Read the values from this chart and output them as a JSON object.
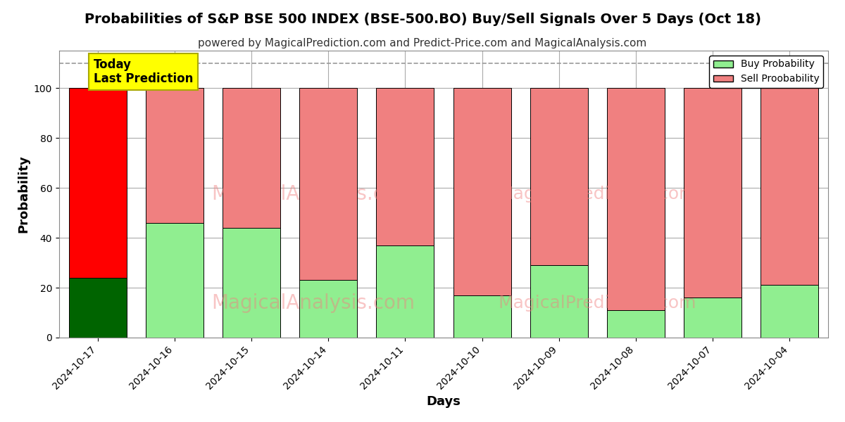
{
  "title": "Probabilities of S&P BSE 500 INDEX (BSE-500.BO) Buy/Sell Signals Over 5 Days (Oct 18)",
  "subtitle": "powered by MagicalPrediction.com and Predict-Price.com and MagicalAnalysis.com",
  "xlabel": "Days",
  "ylabel": "Probability",
  "watermark1": "MagicalAnalysis.com",
  "watermark2": "MagicalPrediction.com",
  "categories": [
    "2024-10-17",
    "2024-10-16",
    "2024-10-15",
    "2024-10-14",
    "2024-10-11",
    "2024-10-10",
    "2024-10-09",
    "2024-10-08",
    "2024-10-07",
    "2024-10-04"
  ],
  "buy_values": [
    24,
    46,
    44,
    23,
    37,
    17,
    29,
    11,
    16,
    21
  ],
  "sell_values": [
    76,
    54,
    56,
    77,
    63,
    83,
    71,
    89,
    84,
    79
  ],
  "today_bar_index": 0,
  "today_buy_color": "#006400",
  "today_sell_color": "#FF0000",
  "other_buy_color": "#90EE90",
  "other_sell_color": "#F08080",
  "bar_edge_color": "#000000",
  "ylim": [
    0,
    115
  ],
  "yticks": [
    0,
    20,
    40,
    60,
    80,
    100
  ],
  "dashed_line_y": 110,
  "legend_buy_label": "Buy Probability",
  "legend_sell_label": "Sell Proobability",
  "annotation_text": "Today\nLast Prediction",
  "annotation_bg": "#FFFF00",
  "annotation_border": "#AAAA00",
  "background_color": "#FFFFFF",
  "grid_color": "#AAAAAA",
  "title_fontsize": 14,
  "subtitle_fontsize": 11,
  "axis_label_fontsize": 13,
  "tick_fontsize": 10,
  "bar_width": 0.75
}
